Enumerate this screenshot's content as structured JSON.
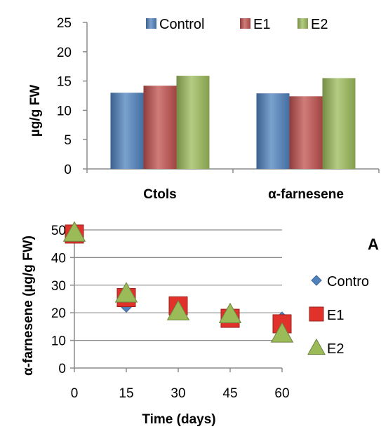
{
  "chart_data": [
    {
      "type": "bar",
      "categories": [
        "Ctols",
        "α-farnesene"
      ],
      "series": [
        {
          "name": "Control",
          "values": [
            13.0,
            12.9
          ],
          "color": "#4f81bd"
        },
        {
          "name": "E1",
          "values": [
            14.2,
            12.4
          ],
          "color": "#c0504d"
        },
        {
          "name": "E2",
          "values": [
            15.9,
            15.5
          ],
          "color": "#9bbb59"
        }
      ],
      "ylabel": "µg/g FW",
      "ylim": [
        0,
        25
      ],
      "yticks": [
        0,
        5,
        10,
        15,
        20,
        25
      ],
      "grid": false,
      "legend": "top"
    },
    {
      "type": "scatter",
      "panel_label": "A",
      "x": [
        0,
        15,
        30,
        45,
        60
      ],
      "series": [
        {
          "name": "Contro",
          "values": [
            49,
            22,
            20,
            19,
            18.5
          ],
          "color": "#4f81bd",
          "marker": "diamond"
        },
        {
          "name": "E1",
          "values": [
            48.5,
            25.5,
            22.5,
            18,
            16
          ],
          "color": "#e0312b",
          "marker": "square"
        },
        {
          "name": "E2",
          "values": [
            49,
            27,
            20.5,
            19.5,
            12.5
          ],
          "color": "#9bbb59",
          "marker": "triangle"
        }
      ],
      "xlabel": "Time (days)",
      "ylabel": "α-farnesene (µg/g FW)",
      "xticks": [
        0,
        15,
        30,
        45,
        60
      ],
      "xlim": [
        0,
        60
      ],
      "yticks": [
        0,
        10,
        20,
        30,
        40,
        50
      ],
      "ylim": [
        0,
        50
      ],
      "grid": true,
      "legend": "right"
    }
  ]
}
